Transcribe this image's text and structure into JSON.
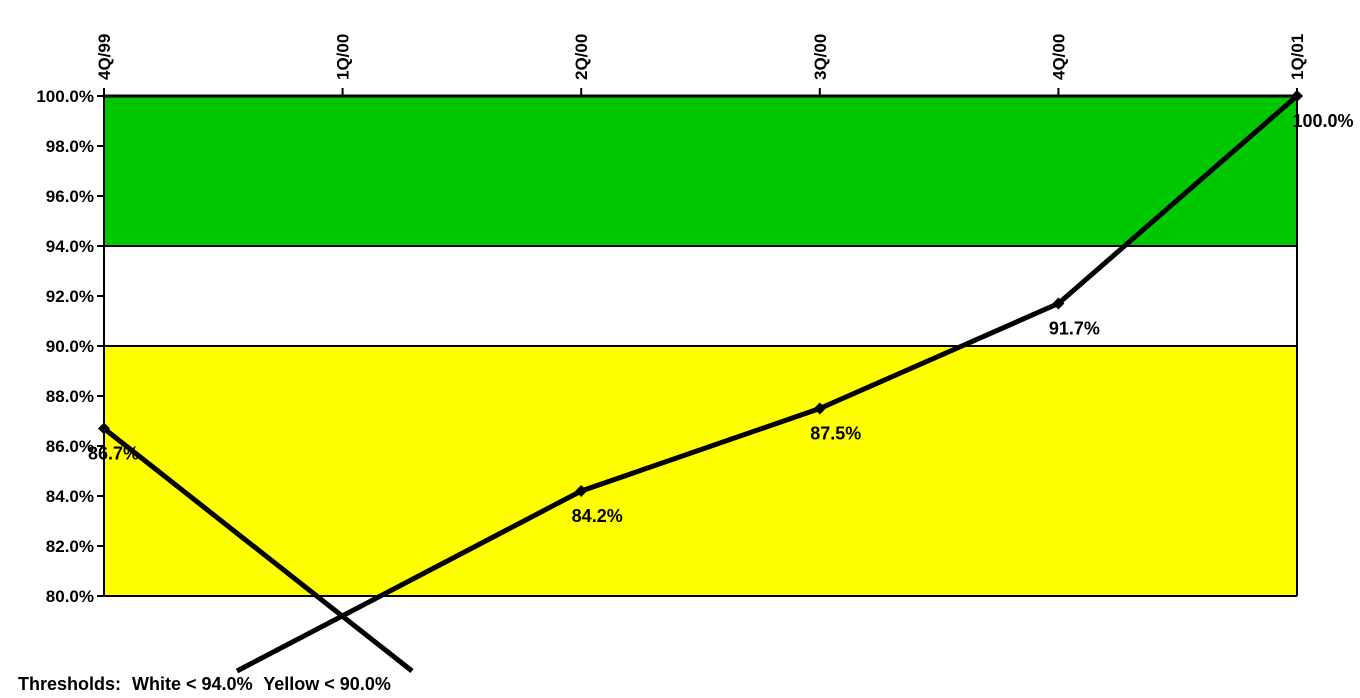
{
  "chart_data": {
    "type": "line",
    "title": "",
    "xlabel": "",
    "ylabel": "",
    "x_position": "top",
    "categories": [
      "4Q/99",
      "1Q/00",
      "2Q/00",
      "3Q/00",
      "4Q/00",
      "1Q/01"
    ],
    "series": [
      {
        "values": [
          86.7,
          null,
          84.2,
          87.5,
          91.7,
          100.0
        ],
        "labels": [
          "86.7%",
          null,
          "84.2%",
          "87.5%",
          "91.7%",
          "100.0%"
        ],
        "color": "#000000",
        "marker": "diamond"
      }
    ],
    "extrapolated_lines": [
      {
        "from": {
          "x": "4Q/99",
          "y": 86.7
        },
        "to_below_axis": true
      },
      {
        "from": {
          "x": "2Q/00",
          "y": 84.2
        },
        "to_below_axis": true
      }
    ],
    "ylim": [
      80,
      100
    ],
    "yticks": [
      80,
      82,
      84,
      86,
      88,
      90,
      92,
      94,
      96,
      98,
      100
    ],
    "ytick_labels": [
      "80.0%",
      "82.0%",
      "84.0%",
      "86.0%",
      "88.0%",
      "90.0%",
      "92.0%",
      "94.0%",
      "96.0%",
      "98.0%",
      "100.0%"
    ],
    "bands": [
      {
        "from": 94,
        "to": 100,
        "color": "#00c800"
      },
      {
        "from": 90,
        "to": 94,
        "color": "#ffffff"
      },
      {
        "from": 80,
        "to": 90,
        "color": "#ffff00"
      }
    ],
    "grid": false
  },
  "footer": {
    "prefix": "Thresholds:",
    "white": "White < 94.0%",
    "yellow": "Yellow < 90.0%"
  }
}
